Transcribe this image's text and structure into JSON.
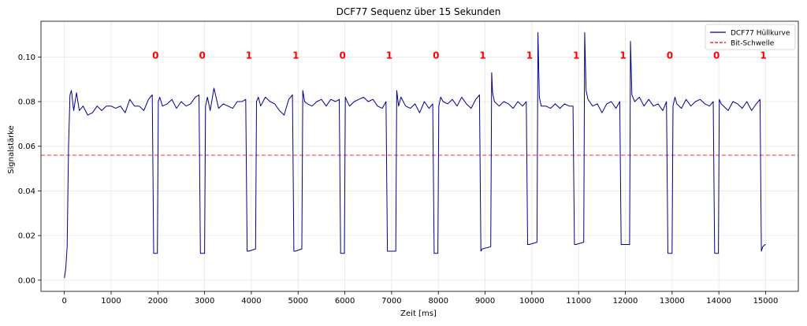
{
  "chart_data": {
    "type": "line",
    "title": "DCF77 Sequenz über 15 Sekunden",
    "xlabel": "Zeit [ms]",
    "ylabel": "Signalstärke",
    "xlim": [
      -500,
      15700
    ],
    "ylim": [
      -0.005,
      0.116
    ],
    "xticks": [
      0,
      1000,
      2000,
      3000,
      4000,
      5000,
      6000,
      7000,
      8000,
      9000,
      10000,
      11000,
      12000,
      13000,
      14000,
      15000
    ],
    "yticks": [
      0.0,
      0.02,
      0.04,
      0.06,
      0.08,
      0.1
    ],
    "ytick_labels": [
      "0.00",
      "0.02",
      "0.04",
      "0.06",
      "0.08",
      "0.10"
    ],
    "grid": true,
    "legend_position": "top-right",
    "legend": [
      {
        "label": "DCF77 Hüllkurve",
        "color": "#00008b",
        "style": "solid"
      },
      {
        "label": "Bit-Schwelle",
        "color": "#ff0000",
        "style": "dashed"
      }
    ],
    "threshold": 0.056,
    "bit_label_y": 0.101,
    "bits": [
      {
        "x": 1950,
        "label": "0"
      },
      {
        "x": 2950,
        "label": "0"
      },
      {
        "x": 3950,
        "label": "1"
      },
      {
        "x": 4950,
        "label": "1"
      },
      {
        "x": 5950,
        "label": "0"
      },
      {
        "x": 6950,
        "label": "1"
      },
      {
        "x": 7950,
        "label": "0"
      },
      {
        "x": 8950,
        "label": "1"
      },
      {
        "x": 9950,
        "label": "1"
      },
      {
        "x": 10950,
        "label": "1"
      },
      {
        "x": 11950,
        "label": "1"
      },
      {
        "x": 12950,
        "label": "0"
      },
      {
        "x": 13950,
        "label": "0"
      },
      {
        "x": 14950,
        "label": "1"
      }
    ],
    "series": [
      {
        "name": "DCF77 Hüllkurve",
        "color": "#00008b",
        "x": [
          0,
          30,
          60,
          90,
          120,
          150,
          200,
          260,
          320,
          400,
          500,
          600,
          700,
          800,
          900,
          1000,
          1100,
          1200,
          1300,
          1400,
          1500,
          1600,
          1700,
          1800,
          1880,
          1910,
          1940,
          1990,
          2010,
          2040,
          2100,
          2200,
          2300,
          2400,
          2500,
          2600,
          2700,
          2800,
          2880,
          2910,
          2940,
          3000,
          3020,
          3060,
          3120,
          3200,
          3300,
          3400,
          3500,
          3600,
          3700,
          3800,
          3880,
          3910,
          3940,
          4090,
          4110,
          4150,
          4200,
          4300,
          4400,
          4500,
          4600,
          4700,
          4800,
          4880,
          4910,
          4940,
          5080,
          5100,
          5140,
          5200,
          5300,
          5400,
          5500,
          5600,
          5700,
          5800,
          5880,
          5910,
          5940,
          5990,
          6010,
          6050,
          6100,
          6200,
          6300,
          6400,
          6500,
          6600,
          6700,
          6800,
          6880,
          6910,
          6940,
          7090,
          7110,
          7150,
          7200,
          7300,
          7400,
          7500,
          7600,
          7700,
          7800,
          7880,
          7910,
          7940,
          7990,
          8010,
          8050,
          8100,
          8200,
          8300,
          8400,
          8500,
          8600,
          8700,
          8800,
          8880,
          8910,
          8940,
          9120,
          9140,
          9160,
          9200,
          9300,
          9400,
          9500,
          9600,
          9700,
          9800,
          9880,
          9910,
          9940,
          10110,
          10130,
          10160,
          10200,
          10300,
          10400,
          10500,
          10600,
          10700,
          10800,
          10880,
          10910,
          10940,
          11110,
          11130,
          11160,
          11200,
          11300,
          11400,
          11500,
          11600,
          11700,
          11800,
          11880,
          11910,
          11940,
          12090,
          12110,
          12140,
          12200,
          12300,
          12400,
          12500,
          12600,
          12700,
          12800,
          12880,
          12910,
          12940,
          13000,
          13020,
          13060,
          13100,
          13200,
          13300,
          13400,
          13500,
          13600,
          13700,
          13800,
          13880,
          13910,
          13940,
          13990,
          14010,
          14050,
          14100,
          14200,
          14300,
          14400,
          14500,
          14600,
          14700,
          14800,
          14880,
          14910,
          14940,
          14990,
          15000
        ],
        "values": [
          0.001,
          0.005,
          0.015,
          0.06,
          0.083,
          0.085,
          0.076,
          0.084,
          0.076,
          0.078,
          0.074,
          0.075,
          0.078,
          0.076,
          0.078,
          0.078,
          0.077,
          0.078,
          0.075,
          0.081,
          0.078,
          0.078,
          0.076,
          0.081,
          0.083,
          0.012,
          0.012,
          0.012,
          0.08,
          0.082,
          0.078,
          0.079,
          0.081,
          0.077,
          0.08,
          0.078,
          0.079,
          0.082,
          0.083,
          0.012,
          0.012,
          0.012,
          0.078,
          0.082,
          0.076,
          0.086,
          0.077,
          0.079,
          0.078,
          0.077,
          0.08,
          0.08,
          0.081,
          0.013,
          0.013,
          0.014,
          0.08,
          0.082,
          0.078,
          0.082,
          0.08,
          0.079,
          0.076,
          0.074,
          0.081,
          0.083,
          0.013,
          0.013,
          0.014,
          0.085,
          0.08,
          0.079,
          0.078,
          0.08,
          0.081,
          0.078,
          0.081,
          0.08,
          0.081,
          0.012,
          0.012,
          0.012,
          0.082,
          0.08,
          0.078,
          0.08,
          0.081,
          0.082,
          0.08,
          0.081,
          0.078,
          0.077,
          0.08,
          0.013,
          0.013,
          0.013,
          0.085,
          0.078,
          0.082,
          0.078,
          0.077,
          0.079,
          0.075,
          0.08,
          0.077,
          0.079,
          0.012,
          0.012,
          0.012,
          0.078,
          0.082,
          0.08,
          0.079,
          0.081,
          0.078,
          0.082,
          0.079,
          0.077,
          0.081,
          0.083,
          0.013,
          0.014,
          0.015,
          0.093,
          0.084,
          0.08,
          0.078,
          0.08,
          0.079,
          0.077,
          0.08,
          0.078,
          0.08,
          0.016,
          0.016,
          0.017,
          0.111,
          0.082,
          0.078,
          0.078,
          0.077,
          0.079,
          0.077,
          0.079,
          0.078,
          0.078,
          0.016,
          0.016,
          0.017,
          0.111,
          0.085,
          0.081,
          0.078,
          0.079,
          0.075,
          0.079,
          0.08,
          0.077,
          0.08,
          0.016,
          0.016,
          0.016,
          0.107,
          0.083,
          0.08,
          0.082,
          0.078,
          0.081,
          0.078,
          0.079,
          0.076,
          0.08,
          0.012,
          0.012,
          0.012,
          0.078,
          0.082,
          0.079,
          0.077,
          0.081,
          0.078,
          0.08,
          0.081,
          0.079,
          0.078,
          0.08,
          0.012,
          0.012,
          0.012,
          0.081,
          0.079,
          0.078,
          0.076,
          0.08,
          0.079,
          0.077,
          0.08,
          0.076,
          0.079,
          0.081,
          0.013,
          0.015,
          0.016,
          0.016
        ]
      }
    ]
  }
}
